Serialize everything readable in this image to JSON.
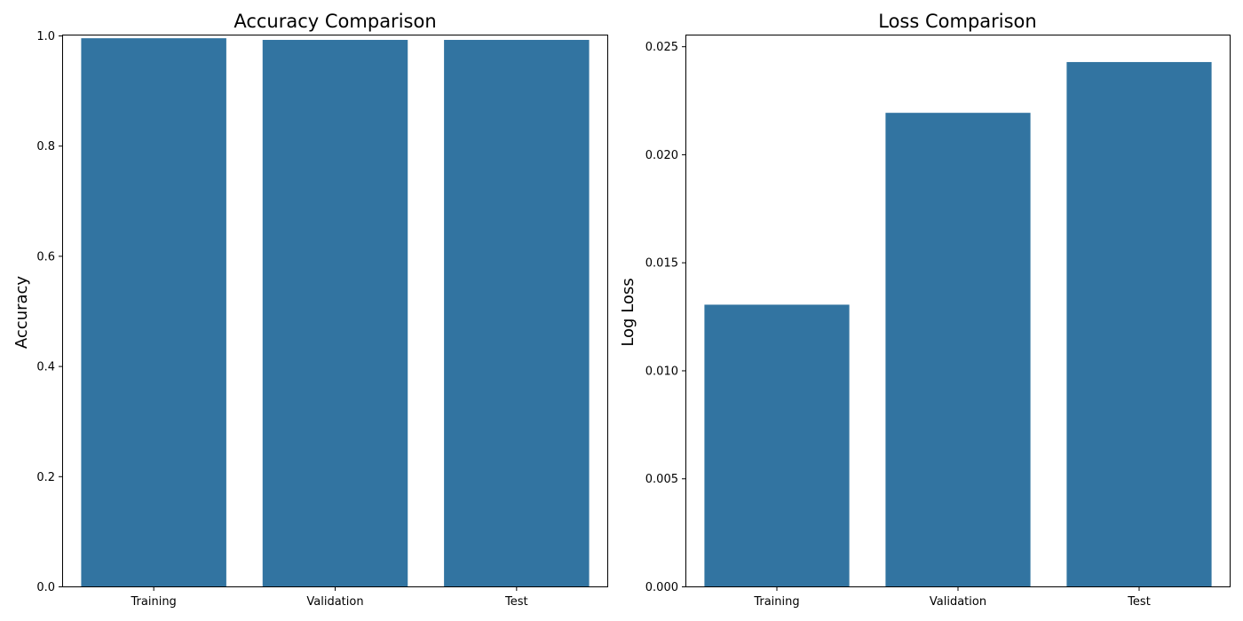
{
  "chart_data": [
    {
      "type": "bar",
      "title": "Accuracy Comparison",
      "xlabel": "",
      "ylabel": "Accuracy",
      "categories": [
        "Training",
        "Validation",
        "Test"
      ],
      "values": [
        0.995,
        0.992,
        0.992
      ],
      "ylim": [
        0,
        1.0
      ],
      "yticks": [
        0.0,
        0.2,
        0.4,
        0.6,
        0.8,
        1.0
      ],
      "ytick_labels": [
        "0.0",
        "0.2",
        "0.4",
        "0.6",
        "0.8",
        "1.0"
      ],
      "bar_color": "#3274a1",
      "grid": false,
      "legend": "none"
    },
    {
      "type": "bar",
      "title": "Loss Comparison",
      "xlabel": "",
      "ylabel": "Log Loss",
      "categories": [
        "Training",
        "Validation",
        "Test"
      ],
      "values": [
        0.01304,
        0.02192,
        0.02427
      ],
      "ylim": [
        0,
        0.0255
      ],
      "yticks": [
        0.0,
        0.005,
        0.01,
        0.015,
        0.02,
        0.025
      ],
      "ytick_labels": [
        "0.000",
        "0.005",
        "0.010",
        "0.015",
        "0.020",
        "0.025"
      ],
      "bar_color": "#3274a1",
      "grid": false,
      "legend": "none"
    }
  ]
}
